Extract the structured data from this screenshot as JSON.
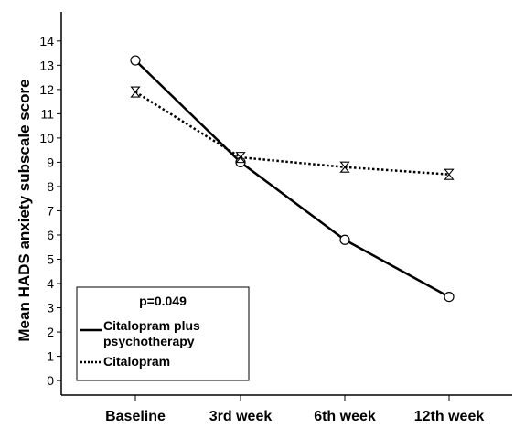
{
  "chart_data": {
    "type": "line",
    "title": "",
    "xlabel": "",
    "ylabel": "Mean HADS anxiety subscale score",
    "categories": [
      "Baseline",
      "3rd week",
      "6th week",
      "12th week"
    ],
    "y_ticks": [
      0,
      1,
      2,
      3,
      4,
      5,
      6,
      7,
      8,
      9,
      10,
      11,
      12,
      13,
      14
    ],
    "ylim": [
      -0.6,
      15.2
    ],
    "grid": false,
    "legend_position": "bottom-left",
    "annotation": "p=0.049",
    "series": [
      {
        "name": "Citalopram plus psychotherapy",
        "line_style": "solid",
        "marker": "circle",
        "color": "#000000",
        "values": [
          13.2,
          9.0,
          5.8,
          3.45
        ]
      },
      {
        "name": "Citalopram",
        "line_style": "dotted",
        "marker": "hourglass",
        "color": "#000000",
        "values": [
          11.9,
          9.2,
          8.8,
          8.5
        ]
      }
    ]
  }
}
